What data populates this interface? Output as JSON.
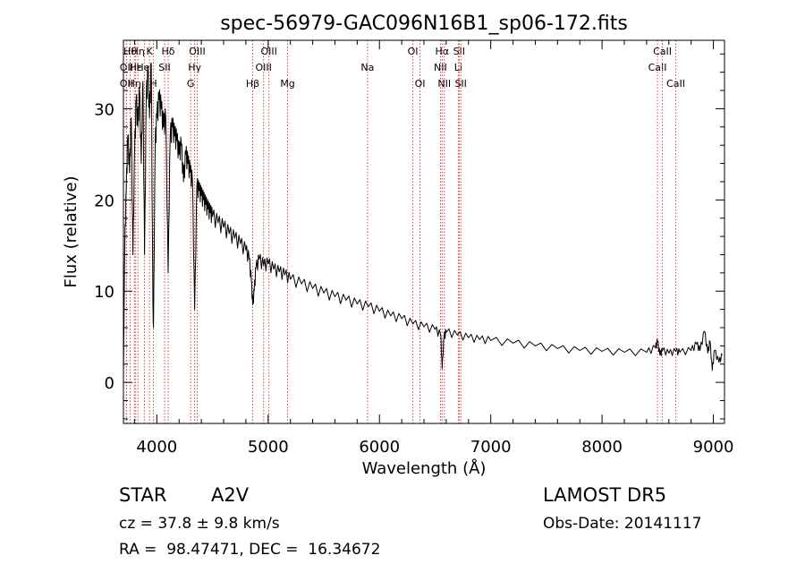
{
  "chart_data": {
    "type": "line",
    "title": "spec-56979-GAC096N16B1_sp06-172.fits",
    "xlabel": "Wavelength (Å)",
    "ylabel": "Flux (relative)",
    "xlim": [
      3700,
      9100
    ],
    "ylim": [
      -4.5,
      37.5
    ],
    "x_ticks": [
      4000,
      5000,
      6000,
      7000,
      8000,
      9000
    ],
    "x_tick_labels": [
      "4000",
      "5000",
      "6000",
      "7000",
      "8000",
      "9000"
    ],
    "y_ticks": [
      0,
      10,
      20,
      30
    ],
    "y_tick_labels": [
      "0",
      "10",
      "20",
      "30"
    ],
    "line_color": "#000000",
    "marker_color": "#cc3333",
    "series": [
      {
        "points": [
          [
            3700,
            0.5
          ],
          [
            3712,
            15
          ],
          [
            3725,
            21
          ],
          [
            3740,
            27
          ],
          [
            3755,
            23
          ],
          [
            3770,
            29
          ],
          [
            3785,
            14
          ],
          [
            3800,
            25
          ],
          [
            3815,
            31
          ],
          [
            3830,
            28
          ],
          [
            3845,
            32
          ],
          [
            3860,
            24
          ],
          [
            3875,
            33
          ],
          [
            3890,
            14
          ],
          [
            3905,
            31
          ],
          [
            3920,
            34
          ],
          [
            3935,
            29
          ],
          [
            3950,
            35
          ],
          [
            3965,
            8
          ],
          [
            3970,
            6
          ],
          [
            3985,
            26
          ],
          [
            4000,
            29
          ],
          [
            4020,
            31
          ],
          [
            4040,
            30
          ],
          [
            4060,
            28
          ],
          [
            4080,
            29
          ],
          [
            4102,
            12
          ],
          [
            4120,
            27
          ],
          [
            4140,
            28
          ],
          [
            4160,
            27
          ],
          [
            4180,
            26.5
          ],
          [
            4200,
            25
          ],
          [
            4220,
            26
          ],
          [
            4240,
            22
          ],
          [
            4260,
            25
          ],
          [
            4280,
            24
          ],
          [
            4300,
            23
          ],
          [
            4320,
            22
          ],
          [
            4340,
            8
          ],
          [
            4360,
            21.5
          ],
          [
            4380,
            21
          ],
          [
            4400,
            20.5
          ],
          [
            4420,
            20
          ],
          [
            4440,
            19.5
          ],
          [
            4460,
            19
          ],
          [
            4480,
            18.6
          ],
          [
            4500,
            18.2
          ],
          [
            4550,
            17.5
          ],
          [
            4600,
            17
          ],
          [
            4650,
            16.3
          ],
          [
            4700,
            15.8
          ],
          [
            4750,
            15.2
          ],
          [
            4800,
            14.5
          ],
          [
            4830,
            13.5
          ],
          [
            4850,
            11
          ],
          [
            4861,
            8.5
          ],
          [
            4875,
            10
          ],
          [
            4890,
            12.5
          ],
          [
            4920,
            13.5
          ],
          [
            4960,
            12.8
          ],
          [
            5000,
            13
          ],
          [
            5050,
            12.4
          ],
          [
            5100,
            12.1
          ],
          [
            5150,
            11.8
          ],
          [
            5200,
            11.3
          ],
          [
            5300,
            10.8
          ],
          [
            5400,
            10.3
          ],
          [
            5500,
            9.8
          ],
          [
            5600,
            9.4
          ],
          [
            5700,
            9
          ],
          [
            5800,
            8.6
          ],
          [
            5900,
            8.3
          ],
          [
            6000,
            7.8
          ],
          [
            6100,
            7.3
          ],
          [
            6200,
            7
          ],
          [
            6300,
            6.4
          ],
          [
            6400,
            6.1
          ],
          [
            6500,
            5.8
          ],
          [
            6550,
            5.2
          ],
          [
            6563,
            1.5
          ],
          [
            6580,
            5
          ],
          [
            6600,
            5.5
          ],
          [
            6700,
            5.2
          ],
          [
            6800,
            4.9
          ],
          [
            6900,
            4.7
          ],
          [
            7000,
            4.6
          ],
          [
            7200,
            4.3
          ],
          [
            7400,
            4
          ],
          [
            7600,
            3.7
          ],
          [
            7800,
            3.5
          ],
          [
            8000,
            3.4
          ],
          [
            8200,
            3.3
          ],
          [
            8400,
            3.3
          ],
          [
            8480,
            3.8
          ],
          [
            8498,
            4.5
          ],
          [
            8520,
            3
          ],
          [
            8542,
            3.5
          ],
          [
            8600,
            3.2
          ],
          [
            8662,
            3.4
          ],
          [
            8700,
            3.3
          ],
          [
            8800,
            3.5
          ],
          [
            8850,
            4.2
          ],
          [
            8880,
            3.5
          ],
          [
            8920,
            5.6
          ],
          [
            8950,
            3.2
          ],
          [
            8970,
            4.5
          ],
          [
            8990,
            1.3
          ],
          [
            9010,
            3.5
          ],
          [
            9050,
            2.2
          ],
          [
            9080,
            3
          ]
        ]
      }
    ],
    "spectral_lines": [
      {
        "wl": 3727,
        "label": "OII",
        "row": 1
      },
      {
        "wl": 3727,
        "label": "OII",
        "row": 2
      },
      {
        "wl": 3760,
        "label": "Hθ",
        "row": 0
      },
      {
        "wl": 3798,
        "label": "Hη",
        "row": 2
      },
      {
        "wl": 3810,
        "label": "Hε",
        "row": 1
      },
      {
        "wl": 3830,
        "label": "Hη",
        "row": 0
      },
      {
        "wl": 3889,
        "label": "HeI",
        "row": 1
      },
      {
        "wl": 3934,
        "label": "K",
        "row": 0
      },
      {
        "wl": 3969,
        "label": "H",
        "row": 2
      },
      {
        "wl": 4070,
        "label": "SII",
        "row": 1
      },
      {
        "wl": 4102,
        "label": "Hδ",
        "row": 0
      },
      {
        "wl": 4304,
        "label": "G",
        "row": 2
      },
      {
        "wl": 4340,
        "label": "Hγ",
        "row": 1
      },
      {
        "wl": 4363,
        "label": "OIII",
        "row": 0
      },
      {
        "wl": 4861,
        "label": "Hβ",
        "row": 2
      },
      {
        "wl": 4959,
        "label": "OIII",
        "row": 1
      },
      {
        "wl": 5007,
        "label": "OIII",
        "row": 0
      },
      {
        "wl": 5175,
        "label": "Mg",
        "row": 2
      },
      {
        "wl": 5893,
        "label": "Na",
        "row": 1
      },
      {
        "wl": 6300,
        "label": "OI",
        "row": 0
      },
      {
        "wl": 6364,
        "label": "OI",
        "row": 2
      },
      {
        "wl": 6548,
        "label": "NII",
        "row": 1
      },
      {
        "wl": 6563,
        "label": "Hα",
        "row": 0
      },
      {
        "wl": 6583,
        "label": "NII",
        "row": 2
      },
      {
        "wl": 6708,
        "label": "Li",
        "row": 1
      },
      {
        "wl": 6716,
        "label": "SII",
        "row": 0
      },
      {
        "wl": 6731,
        "label": "SII",
        "row": 2
      },
      {
        "wl": 8498,
        "label": "CaII",
        "row": 1
      },
      {
        "wl": 8542,
        "label": "CaII",
        "row": 0
      },
      {
        "wl": 8662,
        "label": "CaII",
        "row": 2
      }
    ]
  },
  "info": {
    "object_class": "STAR",
    "subclass": "A2V",
    "survey": "LAMOST DR5",
    "redshift": "cz = 37.8 ± 9.8 km/s",
    "obs_date": "Obs-Date: 20141117",
    "coords": "RA =  98.47471, DEC =  16.34672"
  }
}
